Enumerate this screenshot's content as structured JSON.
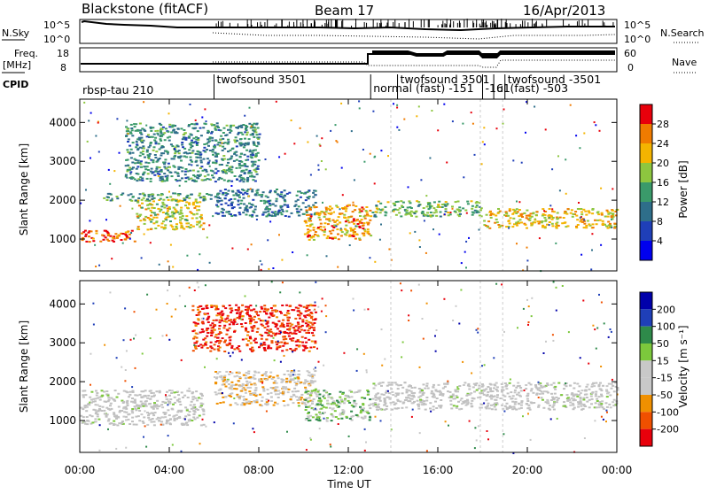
{
  "header": {
    "radar": "Blackstone (fitACF)",
    "beam": "Beam 17",
    "date": "16/Apr/2013"
  },
  "noise_panel": {
    "left_label": "N.Sky",
    "right_label": "N.Search",
    "tick_top": "10^5",
    "tick_bottom": "10^0",
    "right_tick_top": "10^5",
    "right_tick_bottom": "10^0"
  },
  "freq_panel": {
    "left_label_1": "Freq.",
    "left_label_2": "[MHz]",
    "left_tick_top": "18",
    "left_tick_bottom": "8",
    "right_label": "Nave",
    "right_tick_top": "60",
    "right_tick_bottom": "0"
  },
  "cpid": {
    "label": "CPID",
    "segments": [
      {
        "name": "rbsp-tau 210",
        "start_hour": 0.0
      },
      {
        "name": "twofsound 3501",
        "start_hour": 6.0
      },
      {
        "name": "normal (fast) -151",
        "start_hour": 13.0
      },
      {
        "name": "twofsound 3501",
        "start_hour": 14.2
      },
      {
        "name": "-161",
        "start_hour": 18.0
      },
      {
        "name": "ul (fast) -503",
        "start_hour": 18.5
      },
      {
        "name": "twofsound -3501",
        "start_hour": 19.0
      }
    ]
  },
  "power_panel": {
    "ylabel": "Slant Range [km]",
    "yticks": [
      "1000",
      "2000",
      "3000",
      "4000"
    ],
    "colorbar_label": "Power [dB]",
    "colorbar_ticks": [
      "28",
      "24",
      "20",
      "16",
      "12",
      "8",
      "4"
    ]
  },
  "velocity_panel": {
    "ylabel": "Slant Range [km]",
    "yticks": [
      "1000",
      "2000",
      "3000",
      "4000"
    ],
    "colorbar_label": "Velocity [m s⁻¹]",
    "colorbar_ticks": [
      "200",
      "100",
      "50",
      "15",
      "-15",
      "-50",
      "-100",
      "-200"
    ]
  },
  "xaxis": {
    "label": "Time UT",
    "ticks": [
      "00:00",
      "04:00",
      "08:00",
      "12:00",
      "16:00",
      "20:00",
      "00:00"
    ]
  },
  "colors": {
    "power_scale": [
      "#0000ee",
      "#1f3fb8",
      "#2e6e8a",
      "#3a9a6a",
      "#8dc63f",
      "#f4b400",
      "#f07b00",
      "#e8000b"
    ],
    "velocity_scale": [
      "#e8000b",
      "#f05000",
      "#f09000",
      "#c8c8c8",
      "#c8c8c8",
      "#7cc83c",
      "#2e8a4a",
      "#1f3fb8",
      "#0000aa"
    ],
    "ground_scatter": "#c0c0c0"
  },
  "chart_data": [
    {
      "type": "heatmap",
      "name_panel": "power",
      "x_range_hours": [
        0,
        24
      ],
      "y_range_km": [
        180,
        4600
      ],
      "value_unit": "dB",
      "value_range": [
        0,
        32
      ],
      "features": [
        {
          "t_start": 0.0,
          "t_end": 2.5,
          "r_start": 950,
          "r_end": 1250,
          "value": 28
        },
        {
          "t_start": 2.5,
          "t_end": 5.5,
          "r_start": 1250,
          "r_end": 2050,
          "value": 20
        },
        {
          "t_start": 1.0,
          "t_end": 6.0,
          "r_start": 2000,
          "r_end": 2200,
          "value": 14
        },
        {
          "t_start": 2.0,
          "t_end": 8.0,
          "r_start": 2500,
          "r_end": 4000,
          "value": 12
        },
        {
          "t_start": 6.0,
          "t_end": 10.5,
          "r_start": 1600,
          "r_end": 2300,
          "value": 10
        },
        {
          "t_start": 10.0,
          "t_end": 13.0,
          "r_start": 1000,
          "r_end": 1900,
          "value": 24
        },
        {
          "t_start": 13.0,
          "t_end": 18.0,
          "r_start": 1600,
          "r_end": 2000,
          "value": 16
        },
        {
          "t_start": 18.0,
          "t_end": 24.0,
          "r_start": 1300,
          "r_end": 1800,
          "value": 22
        }
      ]
    },
    {
      "type": "heatmap",
      "name_panel": "velocity",
      "x_range_hours": [
        0,
        24
      ],
      "y_range_km": [
        180,
        4600
      ],
      "value_unit": "m s-1",
      "value_range": [
        -250,
        250
      ],
      "features": [
        {
          "t_start": 0.0,
          "t_end": 5.5,
          "r_start": 900,
          "r_end": 1800,
          "value": 0
        },
        {
          "t_start": 5.0,
          "t_end": 10.5,
          "r_start": 2800,
          "r_end": 4000,
          "value": -200
        },
        {
          "t_start": 6.0,
          "t_end": 10.5,
          "r_start": 1400,
          "r_end": 2300,
          "value": -50
        },
        {
          "t_start": 10.0,
          "t_end": 13.0,
          "r_start": 1000,
          "r_end": 1800,
          "value": 40
        },
        {
          "t_start": 13.0,
          "t_end": 24.0,
          "r_start": 1300,
          "r_end": 2000,
          "value": 0
        }
      ]
    }
  ]
}
